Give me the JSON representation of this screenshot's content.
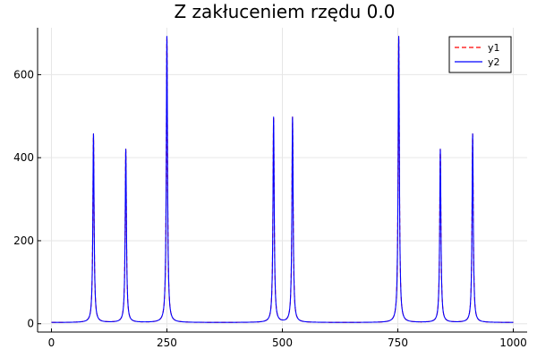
{
  "chart_data": {
    "type": "line",
    "title": "Z zakłuceniem rzędu 0.0",
    "xlabel": "",
    "ylabel": "",
    "xlim": [
      -30,
      1030
    ],
    "ylim": [
      -20,
      713
    ],
    "xticks": [
      0,
      250,
      500,
      750,
      1000
    ],
    "yticks": [
      0,
      200,
      400,
      600
    ],
    "grid": true,
    "legend_position": "top-right",
    "baseline": 3,
    "peaks": [
      {
        "x": 91,
        "y": 457
      },
      {
        "x": 161,
        "y": 420
      },
      {
        "x": 250,
        "y": 692
      },
      {
        "x": 481,
        "y": 497
      },
      {
        "x": 522,
        "y": 497
      },
      {
        "x": 752,
        "y": 692
      },
      {
        "x": 842,
        "y": 420
      },
      {
        "x": 912,
        "y": 457
      }
    ],
    "series": [
      {
        "name": "y1",
        "color": "#ff0000",
        "style": "dashed"
      },
      {
        "name": "y2",
        "color": "#0000ff",
        "style": "solid"
      }
    ]
  }
}
